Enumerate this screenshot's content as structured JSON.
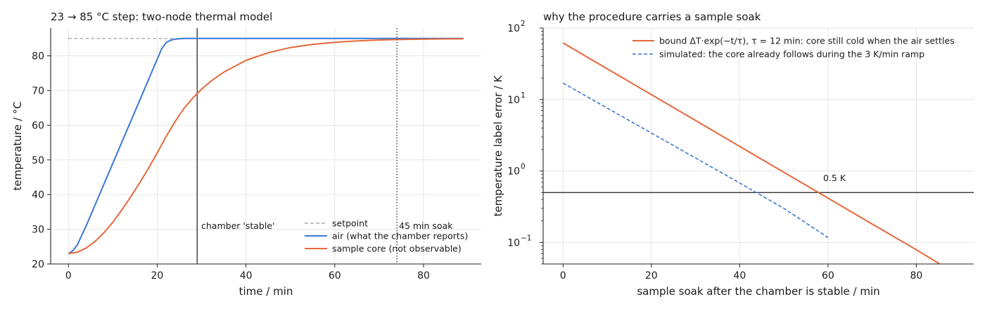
{
  "colors": {
    "air": "#3a78d2",
    "core": "#e5683a",
    "setpoint": "#999999",
    "reference": "#1a1a1a"
  },
  "chart_data": [
    {
      "type": "line",
      "title": "23 → 85 °C step: two-node thermal model",
      "xlabel": "time / min",
      "ylabel": "temperature / °C",
      "xlim": [
        -4,
        93
      ],
      "ylim": [
        20,
        88
      ],
      "xticks": [
        0,
        20,
        40,
        60,
        80
      ],
      "yticks": [
        20,
        30,
        40,
        50,
        60,
        70,
        80
      ],
      "grid": true,
      "legend_position": "lower-right",
      "series": [
        {
          "name": "setpoint",
          "style": "dashed",
          "color": "#999999",
          "x": [
            0,
            89
          ],
          "y": [
            85,
            85
          ]
        },
        {
          "name": "air (what the chamber reports)",
          "style": "solid",
          "color": "#3a78d2",
          "x": [
            0,
            1,
            2,
            4,
            6,
            8,
            10,
            12,
            14,
            16,
            18,
            20,
            21,
            22,
            23,
            24,
            26,
            28,
            30,
            40,
            50,
            60,
            70,
            80,
            89
          ],
          "y": [
            23,
            23.8,
            25.5,
            31,
            37,
            43,
            49,
            55,
            61,
            67,
            73,
            79,
            82,
            83.8,
            84.5,
            84.8,
            85,
            85,
            85,
            85,
            85,
            85,
            85,
            85,
            85
          ]
        },
        {
          "name": "sample core (not observable)",
          "style": "solid",
          "color": "#e5683a",
          "x": [
            0,
            2,
            4,
            6,
            8,
            10,
            12,
            14,
            16,
            18,
            20,
            22,
            24,
            26,
            28,
            30,
            32,
            35,
            40,
            45,
            50,
            55,
            60,
            65,
            70,
            75,
            80,
            85,
            89
          ],
          "y": [
            23,
            23.4,
            24.6,
            26.5,
            29,
            32,
            35.5,
            39.3,
            43.3,
            47.5,
            52,
            56.7,
            61,
            64.8,
            67.8,
            70.4,
            72.6,
            75.3,
            78.7,
            80.9,
            82.4,
            83.3,
            83.9,
            84.3,
            84.55,
            84.7,
            84.8,
            84.88,
            84.9
          ]
        }
      ],
      "annotations": [
        {
          "text": "chamber 'stable'",
          "x": 29,
          "style": "solid-vertical"
        },
        {
          "text": "45 min soak",
          "x": 74,
          "style": "dotted-vertical"
        }
      ]
    },
    {
      "type": "line",
      "title": "why the procedure carries a sample soak",
      "xlabel": "sample soak after the chamber is stable / min",
      "ylabel": "temperature label error / K",
      "xscale": "linear",
      "yscale": "log",
      "xlim": [
        -4.5,
        93
      ],
      "ylim": [
        0.05,
        100
      ],
      "xticks": [
        0,
        20,
        40,
        60,
        80
      ],
      "yticks": [
        0.1,
        1,
        10,
        100
      ],
      "ytick_labels": [
        "10",
        "10",
        "10",
        "10"
      ],
      "ytick_exponents": [
        "−1",
        "0",
        "1",
        "2"
      ],
      "grid": true,
      "legend_position": "top-right",
      "series": [
        {
          "name": "bound ΔT·exp(−t/τ), τ = 12 min: core still cold when the air settles",
          "style": "solid",
          "color": "#e5683a",
          "x": [
            0,
            10,
            20,
            30,
            40,
            50,
            60,
            70,
            80,
            85.3
          ],
          "y": [
            62,
            26.9,
            11.7,
            5.09,
            2.21,
            0.96,
            0.417,
            0.181,
            0.079,
            0.05
          ]
        },
        {
          "name": "simulated: the core already follows during the 3 K/min ramp",
          "style": "dashed",
          "color": "#3a78d2",
          "x": [
            0,
            10,
            20,
            30,
            40,
            50,
            60
          ],
          "y": [
            17,
            7.6,
            3.4,
            1.52,
            0.68,
            0.3,
            0.117
          ]
        }
      ],
      "annotations": [
        {
          "text": "0.5 K",
          "y": 0.5,
          "style": "solid-horizontal"
        }
      ]
    }
  ]
}
